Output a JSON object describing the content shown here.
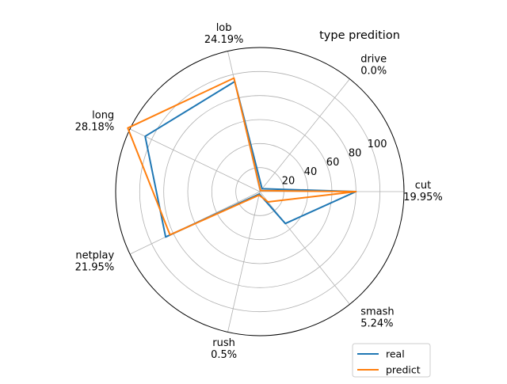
{
  "chart_data": {
    "type": "radar",
    "title": "type predition",
    "categories": [
      {
        "name": "cut",
        "pct": "19.95%"
      },
      {
        "name": "drive",
        "pct": "0.0%"
      },
      {
        "name": "lob",
        "pct": "24.19%"
      },
      {
        "name": "long",
        "pct": "28.18%"
      },
      {
        "name": "netplay",
        "pct": "21.95%"
      },
      {
        "name": "rush",
        "pct": "0.5%"
      },
      {
        "name": "smash",
        "pct": "5.24%"
      }
    ],
    "rlim": [
      0,
      120
    ],
    "rticks": [
      20,
      40,
      60,
      80,
      100
    ],
    "series": [
      {
        "name": "real",
        "color": "#1f77b4",
        "values": [
          80,
          3,
          94,
          106,
          87,
          2,
          34
        ]
      },
      {
        "name": "predict",
        "color": "#ff7f0e",
        "values": [
          80,
          1,
          97,
          122,
          83,
          3,
          11
        ]
      }
    ],
    "grid": true,
    "legend_position": "lower-right"
  }
}
